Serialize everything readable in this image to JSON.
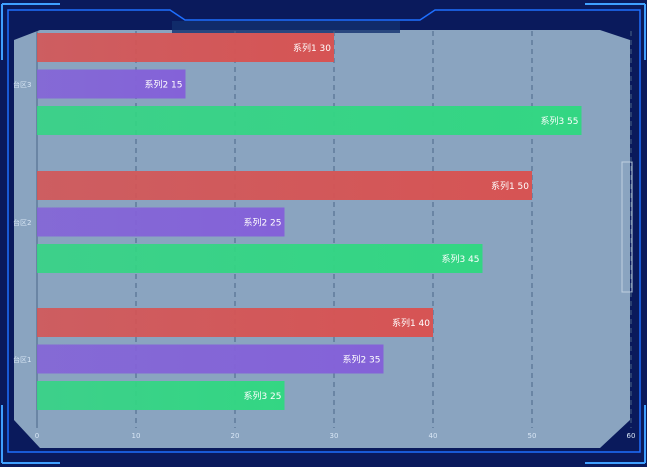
{
  "colors": {
    "background": "#0a1a5c",
    "panel": "#8aa4c0",
    "frame": "#1e6fff",
    "frame_light": "#3fa0ff",
    "grid": "#4a6688",
    "tick_text": "#d8e6f5",
    "label_text": "#ffffff"
  },
  "chart_data": {
    "type": "bar",
    "orientation": "horizontal",
    "categories": [
      "台区3",
      "台区2",
      "台区1"
    ],
    "series": [
      {
        "name": "系列1",
        "color": "#d65454",
        "values": [
          30,
          50,
          40
        ]
      },
      {
        "name": "系列2",
        "color": "#8462d8",
        "values": [
          15,
          25,
          35
        ]
      },
      {
        "name": "系列3",
        "color": "#33d683",
        "values": [
          55,
          45,
          25
        ]
      }
    ],
    "xlim": [
      0,
      60
    ],
    "xticks": [
      0,
      10,
      20,
      30,
      40,
      50,
      60
    ],
    "grid": true,
    "legend": "none",
    "data_label_format": "{series} {value}"
  }
}
